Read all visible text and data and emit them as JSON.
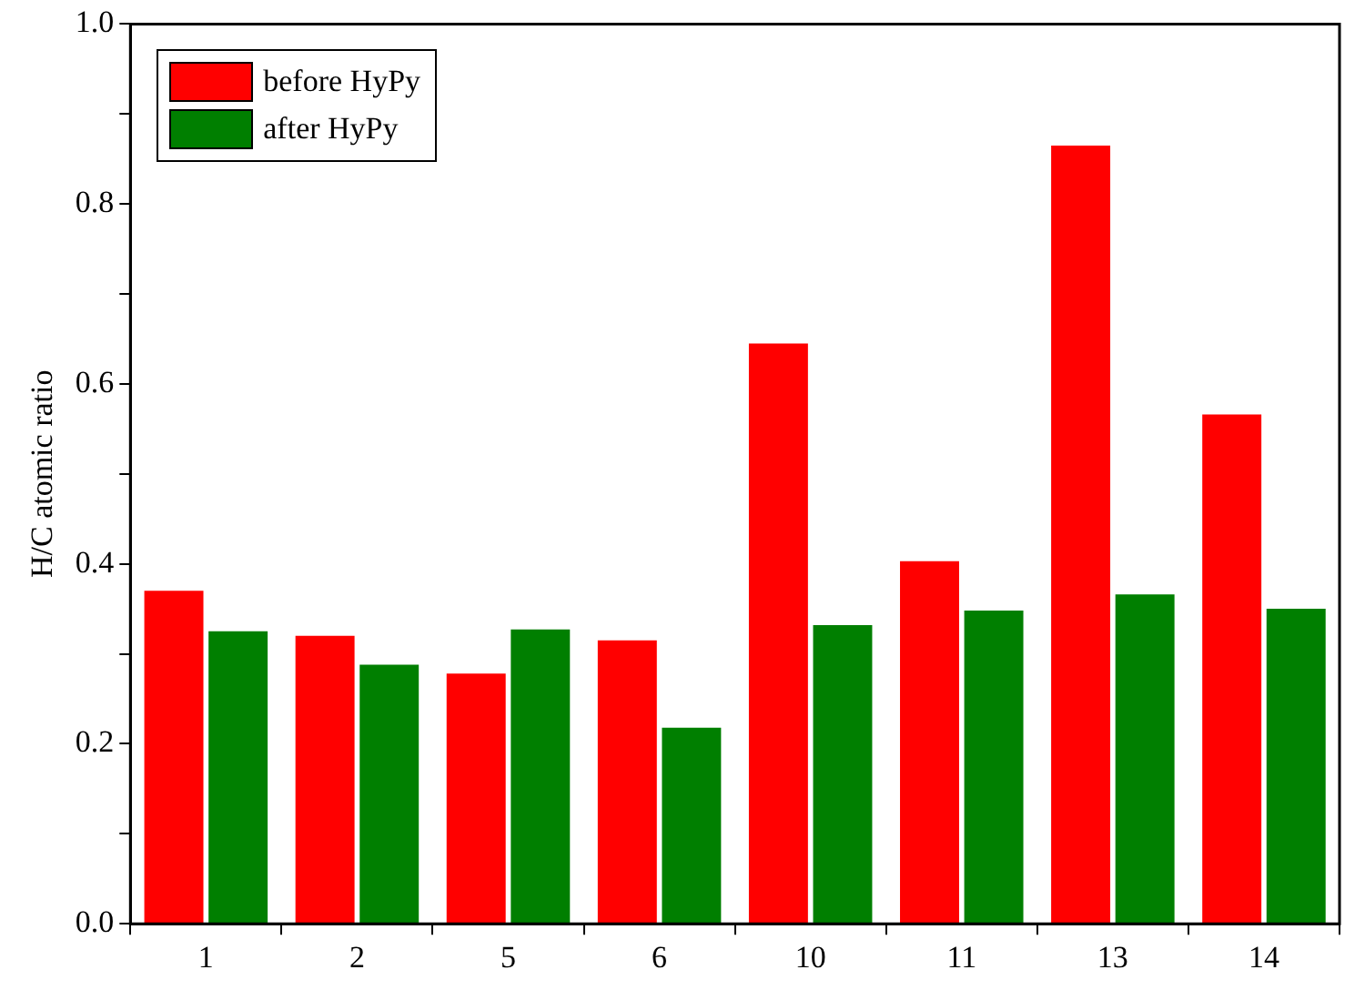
{
  "chart_data": {
    "type": "bar",
    "ylabel": "H/C atomic ratio",
    "categories": [
      "1",
      "2",
      "5",
      "6",
      "10",
      "11",
      "13",
      "14"
    ],
    "series": [
      {
        "name": "before HyPy",
        "color": "#ff0000",
        "values": [
          0.37,
          0.32,
          0.278,
          0.315,
          0.645,
          0.403,
          0.865,
          0.566
        ]
      },
      {
        "name": "after HyPy",
        "color": "#007f00",
        "values": [
          0.325,
          0.288,
          0.327,
          0.218,
          0.332,
          0.348,
          0.366,
          0.35
        ]
      }
    ],
    "ylim": [
      0,
      1
    ],
    "yticks": [
      {
        "value": 0,
        "label": "0.0"
      },
      {
        "value": 0.1,
        "label": null
      },
      0.2,
      {
        "value": 0.3,
        "label": null
      },
      0.4,
      {
        "value": 0.5,
        "label": null
      },
      0.6,
      {
        "value": 0.7,
        "label": null
      },
      0.8,
      {
        "value": 0.9,
        "label": null
      },
      {
        "value": 1,
        "label": "1.0"
      }
    ],
    "grid": false,
    "legend": "top left"
  }
}
